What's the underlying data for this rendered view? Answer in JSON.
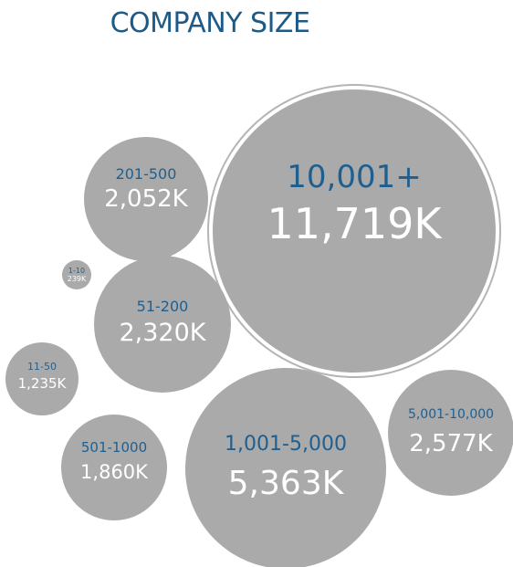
{
  "title": "COMPANY SIZE",
  "colors": {
    "bubble": "#aaaaaa",
    "label": "#1f5f8f",
    "value": "#ffffff",
    "ring": "#b5b5b5",
    "title": "#1e5a86"
  },
  "chart_data": {
    "type": "bubble",
    "title": "COMPANY SIZE",
    "unit": "K",
    "bubbles": [
      {
        "label": "10,001+",
        "value_text": "11,719K",
        "value": 11719
      },
      {
        "label": "1,001-5,000",
        "value_text": "5,363K",
        "value": 5363
      },
      {
        "label": "5,001-10,000",
        "value_text": "2,577K",
        "value": 2577
      },
      {
        "label": "51-200",
        "value_text": "2,320K",
        "value": 2320
      },
      {
        "label": "201-500",
        "value_text": "2,052K",
        "value": 2052
      },
      {
        "label": "501-1000",
        "value_text": "1,860K",
        "value": 1860
      },
      {
        "label": "11-50",
        "value_text": "1,235K",
        "value": 1235
      },
      {
        "label": "1-10",
        "value_text": "239K",
        "value": 239
      }
    ]
  }
}
